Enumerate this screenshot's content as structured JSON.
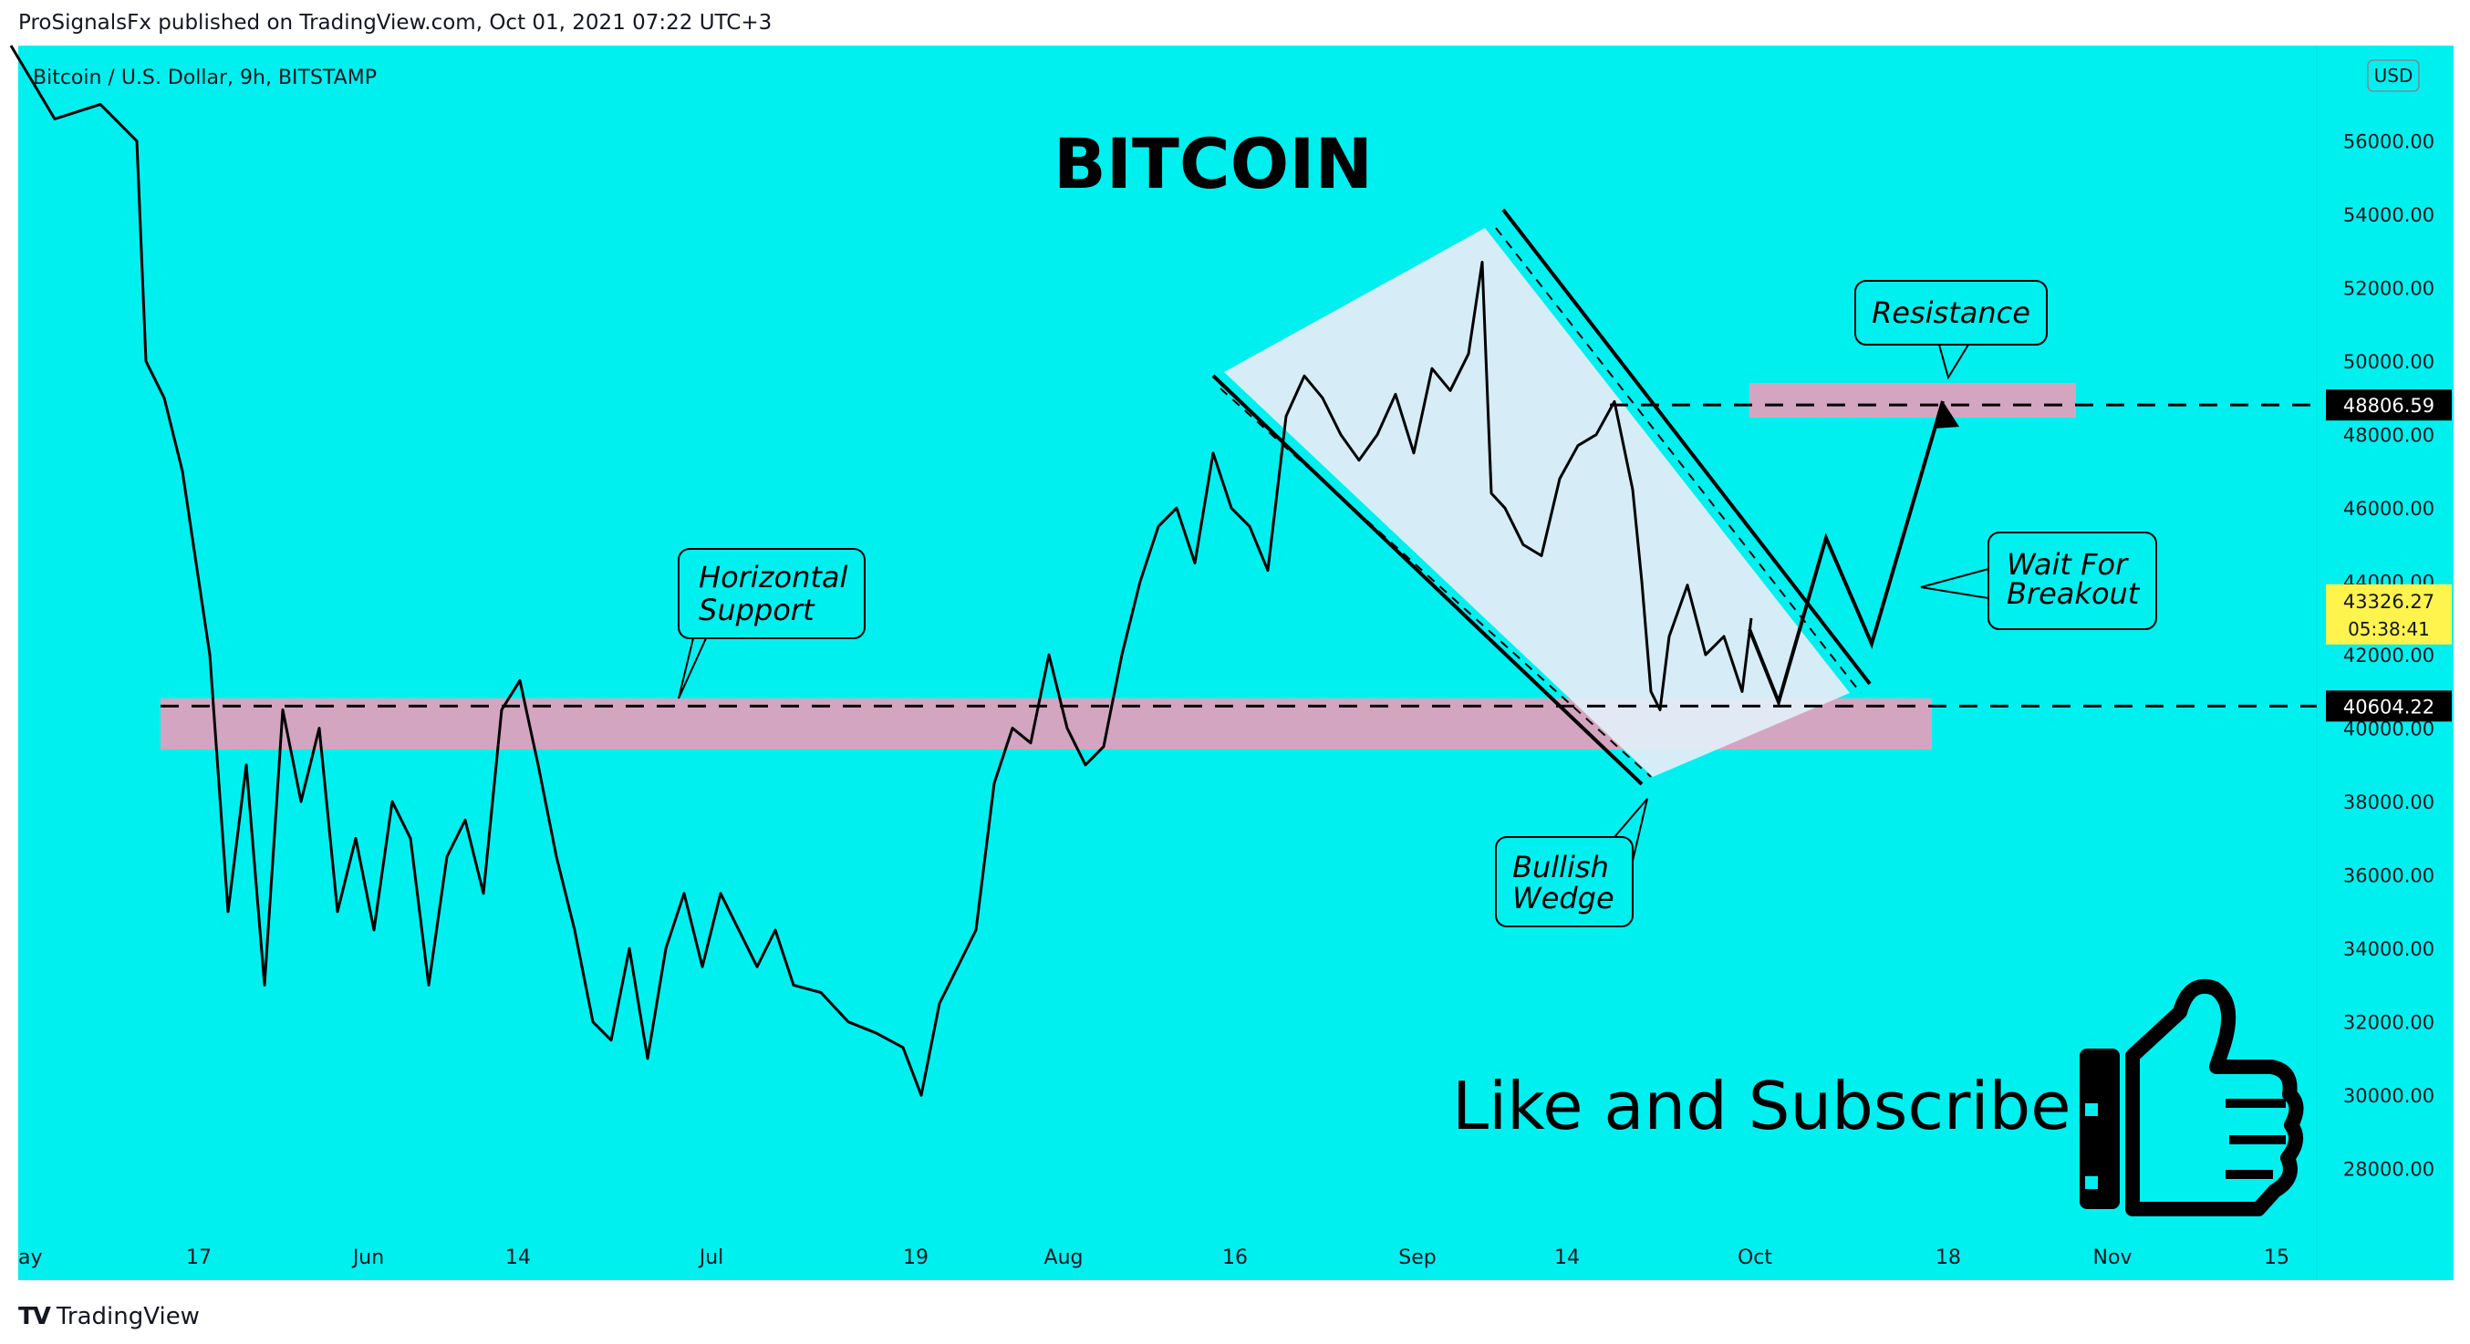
{
  "header": {
    "published": "ProSignalsFx published on TradingView.com, Oct 01, 2021 07:22 UTC+3"
  },
  "symbol_label": "Bitcoin / U.S. Dollar, 9h, BITSTAMP",
  "currency_button": "USD",
  "footer": {
    "brand": "TradingView"
  },
  "colors": {
    "background": "#00f0f0",
    "zone": "#d4a5c0",
    "wedge": "#e2ecf7",
    "candle": "#000000",
    "last_price_bg": "#fff34d"
  },
  "chart_data": {
    "type": "candlestick",
    "title": "BITCOIN",
    "ylim": [
      26600,
      58600
    ],
    "y_ticks": [
      "56000.00",
      "54000.00",
      "52000.00",
      "50000.00",
      "48000.00",
      "46000.00",
      "44000.00",
      "42000.00",
      "40000.00",
      "38000.00",
      "36000.00",
      "34000.00",
      "32000.00",
      "30000.00",
      "28000.00"
    ],
    "x_ticks": [
      "ay",
      "17",
      "Jun",
      "14",
      "Jul",
      "19",
      "Aug",
      "16",
      "Sep",
      "14",
      "Oct",
      "18",
      "Nov",
      "15"
    ],
    "price_trace": [
      [
        12,
        58600
      ],
      [
        60,
        56600
      ],
      [
        110,
        57000
      ],
      [
        150,
        56000
      ],
      [
        160,
        50000
      ],
      [
        180,
        49000
      ],
      [
        200,
        47000
      ],
      [
        230,
        42000
      ],
      [
        250,
        35000
      ],
      [
        270,
        39000
      ],
      [
        290,
        33000
      ],
      [
        310,
        40500
      ],
      [
        330,
        38000
      ],
      [
        350,
        40000
      ],
      [
        370,
        35000
      ],
      [
        390,
        37000
      ],
      [
        410,
        34500
      ],
      [
        430,
        38000
      ],
      [
        450,
        37000
      ],
      [
        470,
        33000
      ],
      [
        490,
        36500
      ],
      [
        510,
        37500
      ],
      [
        530,
        35500
      ],
      [
        550,
        40500
      ],
      [
        570,
        41300
      ],
      [
        590,
        39000
      ],
      [
        610,
        36500
      ],
      [
        630,
        34500
      ],
      [
        650,
        32000
      ],
      [
        670,
        31500
      ],
      [
        690,
        34000
      ],
      [
        710,
        31000
      ],
      [
        730,
        34000
      ],
      [
        750,
        35500
      ],
      [
        770,
        33500
      ],
      [
        790,
        35500
      ],
      [
        810,
        34500
      ],
      [
        830,
        33500
      ],
      [
        850,
        34500
      ],
      [
        870,
        33000
      ],
      [
        900,
        32800
      ],
      [
        930,
        32000
      ],
      [
        960,
        31700
      ],
      [
        990,
        31300
      ],
      [
        1010,
        30000
      ],
      [
        1030,
        32500
      ],
      [
        1050,
        33500
      ],
      [
        1070,
        34500
      ],
      [
        1090,
        38500
      ],
      [
        1110,
        40000
      ],
      [
        1130,
        39600
      ],
      [
        1150,
        42000
      ],
      [
        1170,
        40000
      ],
      [
        1190,
        39000
      ],
      [
        1210,
        39500
      ],
      [
        1230,
        42000
      ],
      [
        1250,
        44000
      ],
      [
        1270,
        45500
      ],
      [
        1290,
        46000
      ],
      [
        1310,
        44500
      ],
      [
        1330,
        47500
      ],
      [
        1350,
        46000
      ],
      [
        1370,
        45500
      ],
      [
        1390,
        44300
      ],
      [
        1410,
        48500
      ],
      [
        1430,
        49600
      ],
      [
        1450,
        49000
      ],
      [
        1470,
        48000
      ],
      [
        1490,
        47300
      ],
      [
        1510,
        48000
      ],
      [
        1530,
        49100
      ],
      [
        1550,
        47500
      ],
      [
        1570,
        49800
      ],
      [
        1590,
        49200
      ],
      [
        1610,
        50200
      ],
      [
        1625,
        52700
      ],
      [
        1635,
        46400
      ],
      [
        1650,
        46000
      ],
      [
        1670,
        45000
      ],
      [
        1690,
        44700
      ],
      [
        1710,
        46800
      ],
      [
        1730,
        47700
      ],
      [
        1750,
        48000
      ],
      [
        1770,
        48900
      ],
      [
        1790,
        46500
      ],
      [
        1800,
        44000
      ],
      [
        1810,
        41000
      ],
      [
        1820,
        40500
      ],
      [
        1830,
        42500
      ],
      [
        1850,
        43900
      ],
      [
        1870,
        42000
      ],
      [
        1890,
        42500
      ],
      [
        1910,
        41000
      ],
      [
        1920,
        43000
      ]
    ],
    "horizontal_lines": [
      {
        "value": 48806.59,
        "label": "48806.59"
      },
      {
        "value": 40604.22,
        "label": "40604.22"
      }
    ],
    "last_price": {
      "value": 43326.27,
      "label": "43326.27",
      "countdown": "05:38:41"
    },
    "annotations": {
      "horizontal_support": "Horizontal\nSupport",
      "bullish_wedge": "Bullish\nWedge",
      "resistance": "Resistance",
      "wait_breakout": "Wait For\nBreakout",
      "cta": "Like and Subscribe"
    }
  }
}
